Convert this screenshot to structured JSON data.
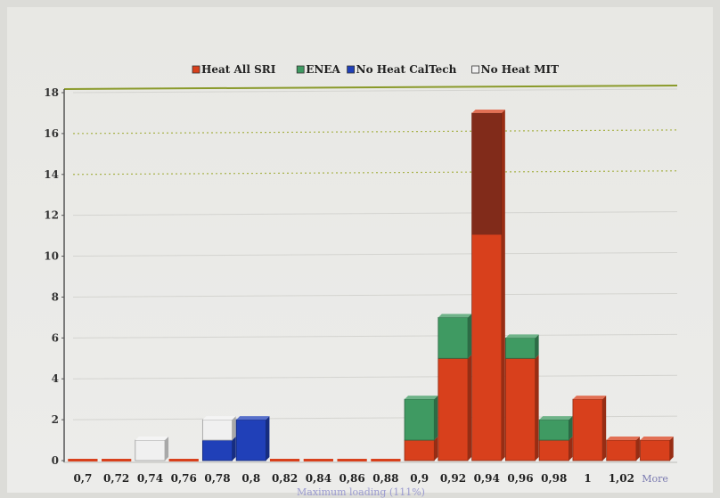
{
  "chart_data": {
    "type": "bar",
    "stacked": true,
    "title": "",
    "xlabel": "Maximum loading (111%)",
    "ylabel": "",
    "ylim": [
      0,
      18
    ],
    "yticks": [
      0,
      2,
      4,
      6,
      8,
      10,
      12,
      14,
      16,
      18
    ],
    "grid": true,
    "legend_position": "top",
    "categories": [
      "0,7",
      "0,72",
      "0,74",
      "0,76",
      "0,78",
      "0,8",
      "0,82",
      "0,84",
      "0,86",
      "0,88",
      "0,9",
      "0,92",
      "0,94",
      "0,96",
      "0,98",
      "1",
      "1,02",
      "More"
    ],
    "series": [
      {
        "name": "Heat All SRI",
        "color": "#d8401c",
        "values": [
          0,
          0,
          0,
          0,
          0,
          0,
          0,
          0,
          0,
          0,
          1,
          5,
          17,
          5,
          1,
          3,
          1,
          1
        ]
      },
      {
        "name": "ENEA",
        "color": "#3f9a62",
        "values": [
          0,
          0,
          0,
          0,
          0,
          0,
          0,
          0,
          0,
          0,
          2,
          2,
          0,
          1,
          1,
          0,
          0,
          0
        ]
      },
      {
        "name": "No Heat CalTech",
        "color": "#2040b8",
        "values": [
          0,
          0,
          0,
          0,
          1,
          2,
          0,
          0,
          0,
          0,
          0,
          0,
          0,
          0,
          0,
          0,
          0,
          0
        ]
      },
      {
        "name": "No Heat MIT",
        "color": "#f0f0f0",
        "values": [
          0,
          0,
          1,
          0,
          1,
          0,
          0,
          0,
          0,
          0,
          0,
          0,
          0,
          0,
          0,
          0,
          0,
          0
        ]
      }
    ]
  }
}
